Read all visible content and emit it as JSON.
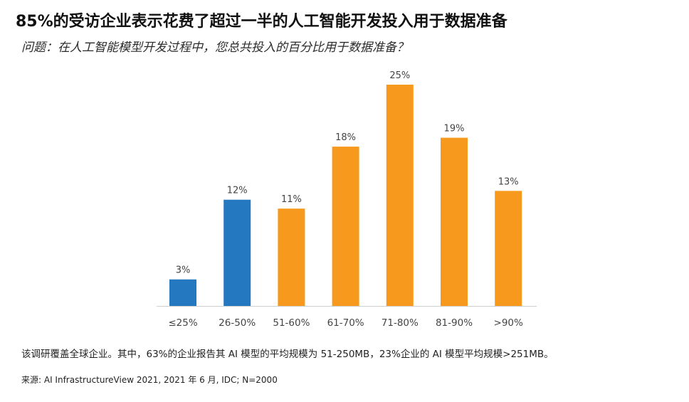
{
  "header": {
    "title": "85%的受访企业表示花费了超过一半的人工智能开发投入用于数据准备",
    "subtitle": "问题：在人工智能模型开发过程中，您总共投入的百分比用于数据准备？"
  },
  "footer": {
    "note": "该调研覆盖全球企业。其中，63%的企业报告其 AI 模型的平均规模为 51-250MB，23%企业的 AI 模型平均规模>251MB。",
    "source": "来源: AI InfrastructureView 2021, 2021 年 6 月, IDC; N=2000"
  },
  "chart_data": {
    "type": "bar",
    "title": "85%的受访企业表示花费了超过一半的人工智能开发投入用于数据准备",
    "subtitle": "问题：在人工智能模型开发过程中，您总共投入的百分比用于数据准备？",
    "xlabel": "",
    "ylabel": "",
    "ylim": [
      0,
      25
    ],
    "grid": false,
    "categories": [
      "≤25%",
      "26-50%",
      "51-60%",
      "61-70%",
      "71-80%",
      "81-90%",
      ">90%"
    ],
    "values": [
      3,
      12,
      11,
      18,
      25,
      19,
      13
    ],
    "data_labels": [
      "3%",
      "12%",
      "11%",
      "18%",
      "25%",
      "19%",
      "13%"
    ],
    "bar_colors": [
      "#2478bf",
      "#2478bf",
      "#f7991c",
      "#f7991c",
      "#f7991c",
      "#f7991c",
      "#f7991c"
    ],
    "axis_color": "#cfcfcf"
  }
}
